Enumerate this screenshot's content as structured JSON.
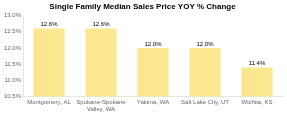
{
  "chart_data": {
    "type": "bar",
    "title": "Single Family Median Sales Price YOY % Change",
    "categories": [
      "Montgomery, AL",
      "Spokane-Spokane\nValley, WA",
      "Yakima, WA",
      "Salt Lake City, UT",
      "Wichita, KS"
    ],
    "values": [
      12.6,
      12.6,
      12.0,
      12.0,
      11.4
    ],
    "value_labels": [
      "12.6%",
      "12.6%",
      "12.0%",
      "12.0%",
      "11.4%"
    ],
    "data_labels": true,
    "color": "#FAE78F",
    "ylim": [
      10.5,
      13.0
    ],
    "yticks": [
      {
        "value": 10.5,
        "label": "10.5%"
      },
      {
        "value": 11.0,
        "label": "11.0%"
      },
      {
        "value": 11.5,
        "label": "11.5%"
      },
      {
        "value": 12.0,
        "label": "12.0%"
      },
      {
        "value": 12.5,
        "label": "12.5%"
      },
      {
        "value": 13.0,
        "label": "13.0%"
      }
    ],
    "grid": false
  }
}
